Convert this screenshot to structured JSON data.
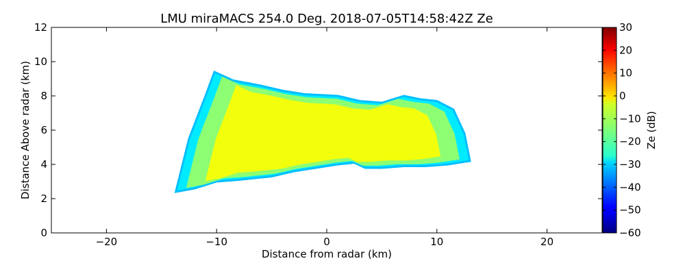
{
  "chart_data": {
    "type": "heatmap",
    "title": "LMU miraMACS 254.0 Deg. 2018-07-05T14:58:42Z  Ze",
    "xlabel": "Distance from radar (km)",
    "ylabel": "Distance Above radar  (km)",
    "xlim": [
      -25,
      25
    ],
    "ylim": [
      0,
      12
    ],
    "xticks": [
      -20,
      -10,
      0,
      10,
      20
    ],
    "xtick_labels": [
      "−20",
      "−10",
      "0",
      "10",
      "20"
    ],
    "yticks": [
      0,
      2,
      4,
      6,
      8,
      10,
      12
    ],
    "ytick_labels": [
      "0",
      "2",
      "4",
      "6",
      "8",
      "10",
      "12"
    ],
    "colorbar": {
      "label": "Ze (dB)",
      "range": [
        -60,
        30
      ],
      "colormap": "jet",
      "ticks": [
        30,
        20,
        10,
        0,
        -10,
        -20,
        -30,
        -40,
        -50,
        -60
      ],
      "tick_labels": [
        "30",
        "20",
        "10",
        "0",
        "−10",
        "−20",
        "−30",
        "−40",
        "−50",
        "−60"
      ]
    },
    "echo_region": {
      "description_units": "km",
      "top_boundary": [
        [
          -13.7,
          2.4
        ],
        [
          -12.5,
          5.5
        ],
        [
          -11.0,
          8.0
        ],
        [
          -10.2,
          9.4
        ],
        [
          -8.5,
          8.9
        ],
        [
          -6.0,
          8.6
        ],
        [
          -4.0,
          8.3
        ],
        [
          -2.0,
          8.1
        ],
        [
          1.0,
          8.0
        ],
        [
          3.0,
          7.7
        ],
        [
          5.0,
          7.6
        ],
        [
          7.0,
          8.0
        ],
        [
          8.5,
          7.8
        ],
        [
          10.0,
          7.7
        ],
        [
          11.5,
          7.2
        ],
        [
          12.5,
          5.8
        ],
        [
          13.0,
          4.2
        ]
      ],
      "bottom_boundary": [
        [
          13.0,
          4.2
        ],
        [
          11.0,
          4.0
        ],
        [
          9.0,
          3.9
        ],
        [
          7.0,
          3.9
        ],
        [
          5.0,
          3.8
        ],
        [
          3.5,
          3.8
        ],
        [
          2.5,
          4.1
        ],
        [
          1.0,
          4.0
        ],
        [
          -1.0,
          3.8
        ],
        [
          -3.0,
          3.6
        ],
        [
          -5.0,
          3.3
        ],
        [
          -8.0,
          3.1
        ],
        [
          -10.0,
          3.0
        ],
        [
          -12.0,
          2.6
        ],
        [
          -13.7,
          2.4
        ]
      ],
      "core_value_db": -5,
      "edge_value_db": -28
    }
  }
}
